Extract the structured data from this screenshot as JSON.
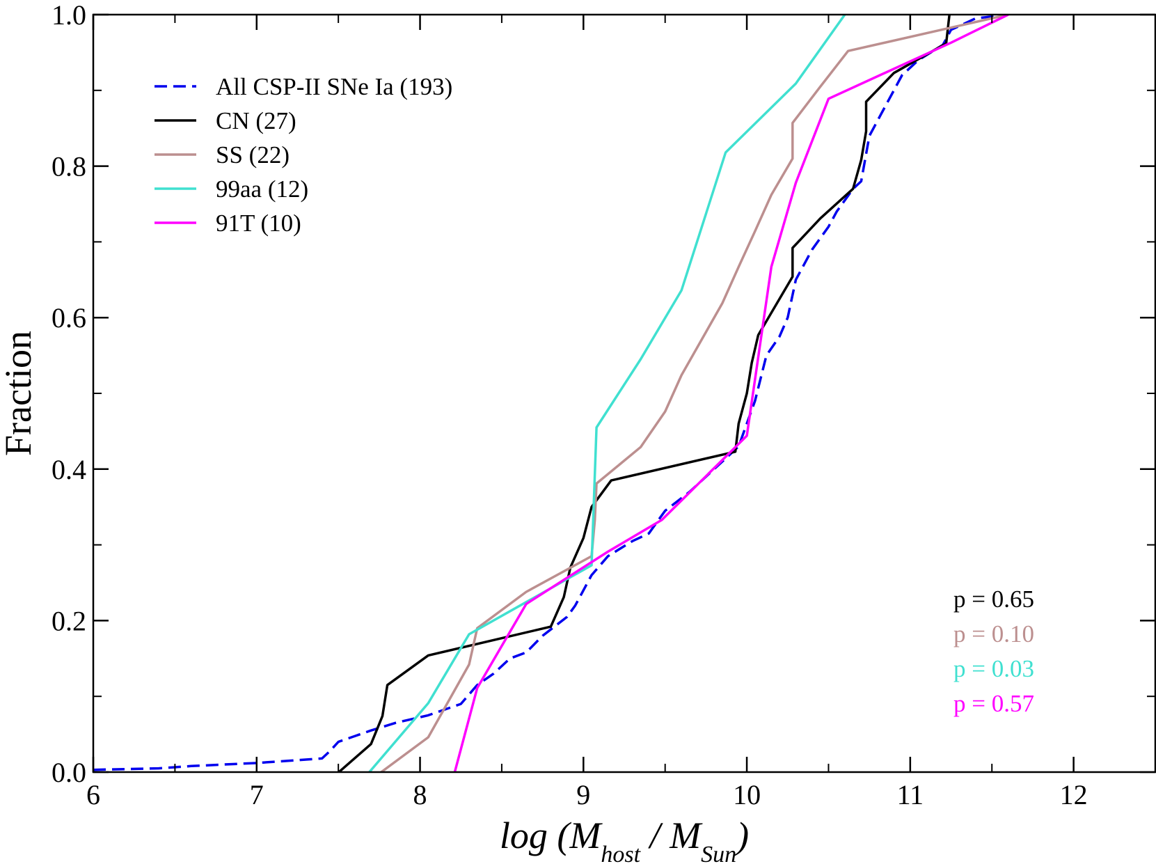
{
  "chart_data": {
    "type": "line",
    "title": "",
    "ylabel": "Fraction",
    "xlabel": {
      "main": "log (M",
      "sub1": "host",
      "mid": " / M",
      "sub2": "Sun",
      "end": ")"
    },
    "xlim": [
      6,
      12.5
    ],
    "ylim": [
      0,
      1
    ],
    "xticks": [
      6,
      7,
      8,
      9,
      10,
      11,
      12
    ],
    "xtick_labels": [
      "6",
      "7",
      "8",
      "9",
      "10",
      "11",
      "12"
    ],
    "yticks": [
      0,
      0.2,
      0.4,
      0.6,
      0.8,
      1.0
    ],
    "ytick_labels": [
      "0.0",
      "0.2",
      "0.4",
      "0.6",
      "0.8",
      "1.0"
    ],
    "legend_position": "top-left",
    "series": [
      {
        "name": "All CSP-II SNe Ia (193)",
        "color": "#0000ee",
        "style": "dashed",
        "points": [
          [
            6.0,
            0.003
          ],
          [
            6.4,
            0.005
          ],
          [
            6.6,
            0.008
          ],
          [
            7.0,
            0.012
          ],
          [
            7.4,
            0.018
          ],
          [
            7.45,
            0.028
          ],
          [
            7.5,
            0.04
          ],
          [
            7.7,
            0.055
          ],
          [
            7.85,
            0.065
          ],
          [
            8.05,
            0.075
          ],
          [
            8.25,
            0.09
          ],
          [
            8.35,
            0.115
          ],
          [
            8.45,
            0.13
          ],
          [
            8.55,
            0.15
          ],
          [
            8.65,
            0.158
          ],
          [
            8.75,
            0.18
          ],
          [
            8.9,
            0.205
          ],
          [
            8.95,
            0.22
          ],
          [
            9.05,
            0.26
          ],
          [
            9.15,
            0.285
          ],
          [
            9.3,
            0.305
          ],
          [
            9.4,
            0.315
          ],
          [
            9.5,
            0.345
          ],
          [
            9.65,
            0.37
          ],
          [
            9.8,
            0.4
          ],
          [
            9.95,
            0.43
          ],
          [
            10.05,
            0.49
          ],
          [
            10.12,
            0.55
          ],
          [
            10.2,
            0.575
          ],
          [
            10.25,
            0.6
          ],
          [
            10.3,
            0.65
          ],
          [
            10.4,
            0.69
          ],
          [
            10.5,
            0.72
          ],
          [
            10.55,
            0.74
          ],
          [
            10.65,
            0.77
          ],
          [
            10.7,
            0.78
          ],
          [
            10.75,
            0.84
          ],
          [
            10.85,
            0.88
          ],
          [
            10.9,
            0.9
          ],
          [
            10.95,
            0.92
          ],
          [
            11.05,
            0.94
          ],
          [
            11.2,
            0.96
          ],
          [
            11.25,
            0.98
          ],
          [
            11.4,
            0.995
          ],
          [
            11.6,
            1.0
          ]
        ]
      },
      {
        "name": "CN (27)",
        "color": "#000000",
        "style": "solid",
        "points": [
          [
            7.45,
            -0.01
          ],
          [
            7.7,
            0.037
          ],
          [
            7.77,
            0.074
          ],
          [
            7.8,
            0.115
          ],
          [
            8.05,
            0.154
          ],
          [
            8.8,
            0.192
          ],
          [
            8.88,
            0.231
          ],
          [
            8.92,
            0.27
          ],
          [
            9.0,
            0.309
          ],
          [
            9.05,
            0.35
          ],
          [
            9.17,
            0.385
          ],
          [
            9.93,
            0.423
          ],
          [
            9.95,
            0.46
          ],
          [
            10.0,
            0.5
          ],
          [
            10.03,
            0.54
          ],
          [
            10.07,
            0.577
          ],
          [
            10.28,
            0.654
          ],
          [
            10.28,
            0.692
          ],
          [
            10.45,
            0.731
          ],
          [
            10.65,
            0.77
          ],
          [
            10.7,
            0.808
          ],
          [
            10.73,
            0.846
          ],
          [
            10.73,
            0.885
          ],
          [
            10.9,
            0.923
          ],
          [
            11.22,
            0.962
          ],
          [
            11.24,
            1.0
          ]
        ]
      },
      {
        "name": "SS (22)",
        "color": "#bc8f8f",
        "style": "solid",
        "points": [
          [
            7.7,
            -0.01
          ],
          [
            8.05,
            0.046
          ],
          [
            8.3,
            0.142
          ],
          [
            8.35,
            0.19
          ],
          [
            8.65,
            0.238
          ],
          [
            9.05,
            0.285
          ],
          [
            9.07,
            0.333
          ],
          [
            9.08,
            0.381
          ],
          [
            9.35,
            0.429
          ],
          [
            9.5,
            0.476
          ],
          [
            9.6,
            0.524
          ],
          [
            9.85,
            0.619
          ],
          [
            9.95,
            0.667
          ],
          [
            10.05,
            0.714
          ],
          [
            10.15,
            0.762
          ],
          [
            10.28,
            0.81
          ],
          [
            10.28,
            0.857
          ],
          [
            10.45,
            0.905
          ],
          [
            10.62,
            0.952
          ],
          [
            11.6,
            1.0
          ]
        ]
      },
      {
        "name": "99aa (12)",
        "color": "#40e0d0",
        "style": "solid",
        "points": [
          [
            7.65,
            -0.01
          ],
          [
            8.05,
            0.091
          ],
          [
            8.3,
            0.182
          ],
          [
            9.05,
            0.273
          ],
          [
            9.08,
            0.455
          ],
          [
            9.35,
            0.545
          ],
          [
            9.6,
            0.636
          ],
          [
            9.87,
            0.818
          ],
          [
            10.3,
            0.909
          ],
          [
            10.6,
            1.0
          ]
        ]
      },
      {
        "name": "91T (10)",
        "color": "#ff00ff",
        "style": "solid",
        "points": [
          [
            8.2,
            -0.01
          ],
          [
            8.35,
            0.111
          ],
          [
            8.65,
            0.222
          ],
          [
            9.15,
            0.291
          ],
          [
            9.48,
            0.333
          ],
          [
            10.0,
            0.444
          ],
          [
            10.15,
            0.667
          ],
          [
            10.3,
            0.778
          ],
          [
            10.5,
            0.889
          ],
          [
            11.25,
            0.963
          ],
          [
            11.6,
            1.0
          ]
        ]
      }
    ],
    "annotations": [
      {
        "text": "p = 0.65",
        "color": "#000000"
      },
      {
        "text": "p = 0.10",
        "color": "#bc8f8f"
      },
      {
        "text": "p = 0.03",
        "color": "#40e0d0"
      },
      {
        "text": "p = 0.57",
        "color": "#ff00ff"
      }
    ]
  }
}
